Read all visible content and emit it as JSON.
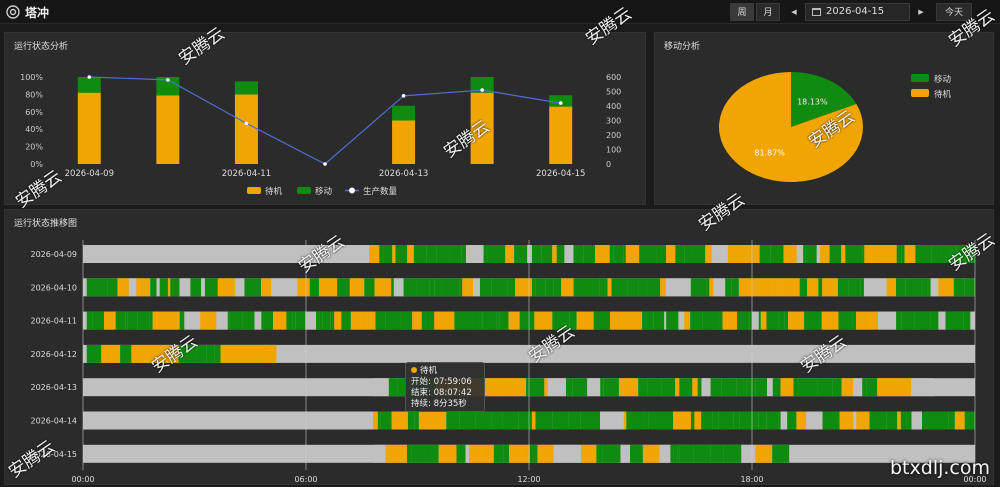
{
  "app": {
    "title": "塔冲",
    "icon": "gear-circle-icon"
  },
  "toolbar": {
    "week_label": "周",
    "month_label": "月",
    "prev_icon": "caret-left-icon",
    "next_icon": "caret-right-icon",
    "calendar_icon": "calendar-icon",
    "date_value": "2026-04-15",
    "today_label": "今天"
  },
  "colors": {
    "idle": "#f0a500",
    "moving": "#0f8c0f",
    "off": "#c0c0c0",
    "line": "#4f6fcf"
  },
  "panels": {
    "run_status": "运行状态分析",
    "movement": "移动分析",
    "trend": "运行状态推移图"
  },
  "chart_data": [
    {
      "type": "bar",
      "title": "运行状态分析",
      "categories": [
        "2026-04-09",
        "2026-04-10",
        "2026-04-11",
        "2026-04-12",
        "2026-04-13",
        "2026-04-14",
        "2026-04-15"
      ],
      "x_tick_labels": [
        "2026-04-09",
        "2026-04-11",
        "2026-04-13",
        "2026-04-15"
      ],
      "stacked": true,
      "series": [
        {
          "name": "待机",
          "values": [
            82,
            79,
            80,
            0,
            50,
            82,
            66
          ]
        },
        {
          "name": "移动",
          "values": [
            18,
            21,
            15,
            0,
            17,
            18,
            13
          ]
        },
        {
          "name": "生产数量",
          "axis": "right",
          "type": "line",
          "values": [
            600,
            580,
            280,
            0,
            470,
            510,
            420
          ]
        }
      ],
      "ylim": [
        0,
        100
      ],
      "y_ticks": [
        "0%",
        "20%",
        "40%",
        "60%",
        "80%",
        "100%"
      ],
      "y2lim": [
        0,
        600
      ],
      "y2_ticks": [
        "0",
        "100",
        "200",
        "300",
        "400",
        "500",
        "600"
      ],
      "legend_position": "bottom"
    },
    {
      "type": "pie",
      "title": "移动分析",
      "slices": [
        {
          "label": "移动",
          "value": 18.13,
          "display": "18.13%"
        },
        {
          "label": "待机",
          "value": 81.87,
          "display": "81.87%"
        }
      ],
      "legend_position": "right"
    },
    {
      "type": "timeline",
      "title": "运行状态推移图",
      "rows": [
        "2026-04-09",
        "2026-04-10",
        "2026-04-11",
        "2026-04-12",
        "2026-04-13",
        "2026-04-14",
        "2026-04-15"
      ],
      "x_ticks": [
        "00:00",
        "06:00",
        "12:00",
        "18:00",
        "00:00"
      ],
      "active_ranges_hours": [
        [
          7.7,
          24
        ],
        [
          0.1,
          24
        ],
        [
          0.1,
          24
        ],
        [
          0.1,
          5.2
        ],
        [
          7.8,
          22.9
        ],
        [
          7.8,
          24
        ],
        [
          7.8,
          19.0
        ]
      ],
      "idle_block": {
        "row": 3,
        "start": 3.7,
        "end": 5.2
      }
    }
  ],
  "tooltip": {
    "status": "待机",
    "start": "开始: 07:59:06",
    "end": "结束: 08:07:42",
    "duration": "持续: 8分35秒"
  },
  "watermarks": [
    "安腾云",
    "安腾云",
    "安腾云",
    "安腾云",
    "安腾云",
    "安腾云",
    "安腾云",
    "安腾云",
    "安腾云",
    "安腾云",
    "安腾云",
    "安腾云",
    "安腾云"
  ],
  "site": "btxdlj.com"
}
